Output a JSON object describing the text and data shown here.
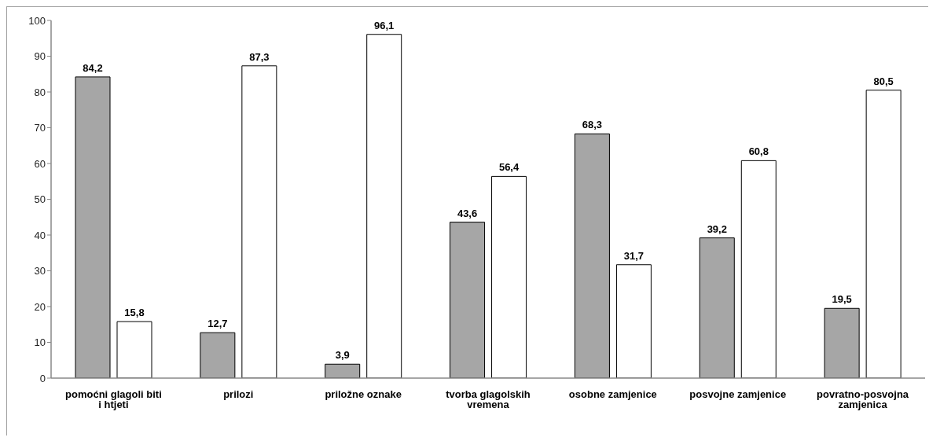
{
  "chart_data": {
    "type": "bar",
    "categories": [
      "pomoćni glagoli biti i htjeti",
      "prilozi",
      "priložne oznake",
      "tvorba glagolskih vremena",
      "osobne zamjenice",
      "posvojne zamjenice",
      "povratno-posvojna zamjenica"
    ],
    "series": [
      {
        "color": "#a6a6a6",
        "values": [
          84.2,
          12.7,
          3.9,
          43.6,
          68.3,
          39.2,
          19.5
        ],
        "value_labels": [
          "84,2",
          "12,7",
          "3,9",
          "43,6",
          "68,3",
          "39,2",
          "19,5"
        ]
      },
      {
        "color": "#ffffff",
        "values": [
          15.8,
          87.3,
          96.1,
          56.4,
          31.7,
          60.8,
          80.5
        ],
        "value_labels": [
          "15,8",
          "87,3",
          "96,1",
          "56,4",
          "31,7",
          "60,8",
          "80,5"
        ]
      }
    ],
    "ylim": [
      0,
      100
    ],
    "yticks": [
      0,
      10,
      20,
      30,
      40,
      50,
      60,
      70,
      80,
      90,
      100
    ]
  }
}
